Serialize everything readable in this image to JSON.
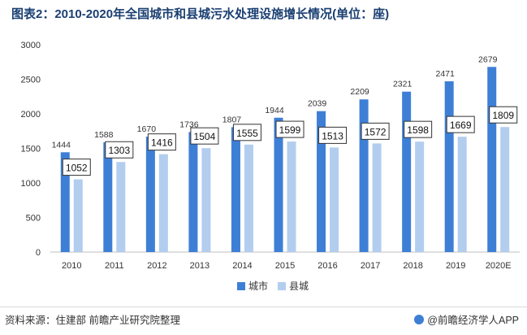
{
  "chart_data": {
    "type": "bar",
    "title": "图表2：2010-2020年全国城市和县城污水处理设施增长情况(单位：座)",
    "categories": [
      "2010",
      "2011",
      "2012",
      "2013",
      "2014",
      "2015",
      "2016",
      "2017",
      "2018",
      "2019",
      "2020E"
    ],
    "series": [
      {
        "name": "城市",
        "color": "#3e7fd6",
        "values": [
          1444,
          1588,
          1670,
          1736,
          1807,
          1944,
          2039,
          2209,
          2321,
          2471,
          2679
        ]
      },
      {
        "name": "县城",
        "color": "#b3cdef",
        "values": [
          1052,
          1303,
          1416,
          1504,
          1555,
          1599,
          1513,
          1572,
          1598,
          1669,
          1809
        ]
      }
    ],
    "ylim": [
      0,
      3000
    ],
    "yticks": [
      0,
      500,
      1000,
      1500,
      2000,
      2500,
      3000
    ],
    "xlabel": "",
    "ylabel": "",
    "legend_position": "bottom",
    "grid": false
  },
  "footer": {
    "source": "资料来源：住建部 前瞻产业研究院整理",
    "brand": "@前瞻经济学人APP"
  }
}
